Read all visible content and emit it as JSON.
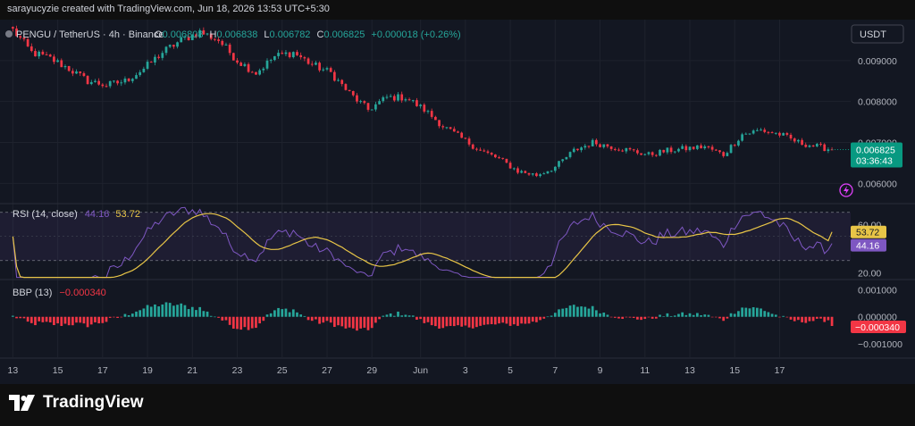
{
  "header": {
    "credit": "sarayucyzie created with TradingView.com, Jun 18, 2026 13:53 UTC+5:30",
    "symbol": "PENGU / TetherUS · 4h · Binance",
    "ohlc": {
      "o_label": "O",
      "o": "0.006808",
      "h_label": "H",
      "h": "0.006838",
      "l_label": "L",
      "l": "0.006782",
      "c_label": "C",
      "c": "0.006825",
      "change": "+0.000018 (+0.26%)"
    },
    "currency_button": "USDT"
  },
  "colors": {
    "up": "#26a69a",
    "down": "#f23645",
    "rsi": "#7e57c2",
    "rsi_ma": "#e8c547",
    "price_tag": "#089981",
    "bbp_tag": "#f23645",
    "background": "#131722",
    "page": "#0f0f0f"
  },
  "footer": {
    "brand": "TradingView",
    "logo_icon": "tradingview-logo-icon"
  },
  "chart_data": [
    {
      "type": "candlestick",
      "pane": "price",
      "symbol": "PENGU / TetherUS",
      "interval": "4h",
      "y_ticks": [
        "0.009000",
        "0.008000",
        "0.007000",
        "0.006000"
      ],
      "y_tick_values": [
        0.009,
        0.008,
        0.007,
        0.006
      ],
      "ylim": [
        0.00555,
        0.01
      ],
      "last_price": "0.006825",
      "countdown": "03:36:43",
      "x_ticks": [
        "13",
        "15",
        "17",
        "19",
        "21",
        "23",
        "25",
        "27",
        "29",
        "Jun",
        "3",
        "5",
        "7",
        "9",
        "11",
        "13",
        "15",
        "17"
      ],
      "x_tick_index": [
        0,
        12,
        24,
        36,
        48,
        60,
        72,
        84,
        96,
        109,
        121,
        133,
        145,
        157,
        169,
        181,
        193,
        205
      ],
      "x_start_index": -2,
      "x_end_index": 224,
      "waypoints_index": [
        0,
        5,
        10,
        15,
        20,
        25,
        30,
        35,
        40,
        45,
        50,
        55,
        60,
        65,
        70,
        75,
        80,
        85,
        90,
        95,
        100,
        105,
        110,
        115,
        120,
        125,
        130,
        135,
        140,
        145,
        150,
        155,
        160,
        165,
        170,
        175,
        180,
        185,
        190,
        195,
        200,
        205,
        210,
        215,
        219
      ],
      "waypoints_close": [
        0.00975,
        0.0092,
        0.00905,
        0.0088,
        0.0085,
        0.0084,
        0.0085,
        0.0088,
        0.0092,
        0.0095,
        0.0097,
        0.0095,
        0.009,
        0.0087,
        0.0091,
        0.0092,
        0.0089,
        0.0087,
        0.0082,
        0.0078,
        0.0081,
        0.0081,
        0.0078,
        0.0074,
        0.0071,
        0.0068,
        0.0066,
        0.0063,
        0.0062,
        0.0064,
        0.0068,
        0.007,
        0.0069,
        0.0068,
        0.0067,
        0.0068,
        0.00685,
        0.0069,
        0.0067,
        0.0072,
        0.0073,
        0.0072,
        0.007,
        0.0069,
        0.006825
      ]
    },
    {
      "type": "line",
      "pane": "rsi",
      "name": "RSI (14, close)",
      "values_label": [
        "44.16",
        "53.72"
      ],
      "y_ticks": [
        "60.00",
        "20.00"
      ],
      "y_tick_values": [
        60,
        20
      ],
      "ylim": [
        15,
        75
      ],
      "band": [
        30,
        70
      ],
      "midline": 50,
      "series": [
        {
          "name": "RSI",
          "last": 44.16,
          "last_label": "44.16"
        },
        {
          "name": "RSI-based MA",
          "last": 53.72,
          "last_label": "53.72"
        }
      ]
    },
    {
      "type": "bar",
      "pane": "bbp",
      "name": "BBP (13)",
      "value_label": "−0.000340",
      "y_ticks": [
        "0.001000",
        "0.000000",
        "−0.001000"
      ],
      "y_tick_values": [
        0.001,
        0,
        -0.001
      ],
      "ylim": [
        -0.0015,
        0.00135
      ],
      "last": -0.00034,
      "last_label": "−0.000340"
    }
  ]
}
